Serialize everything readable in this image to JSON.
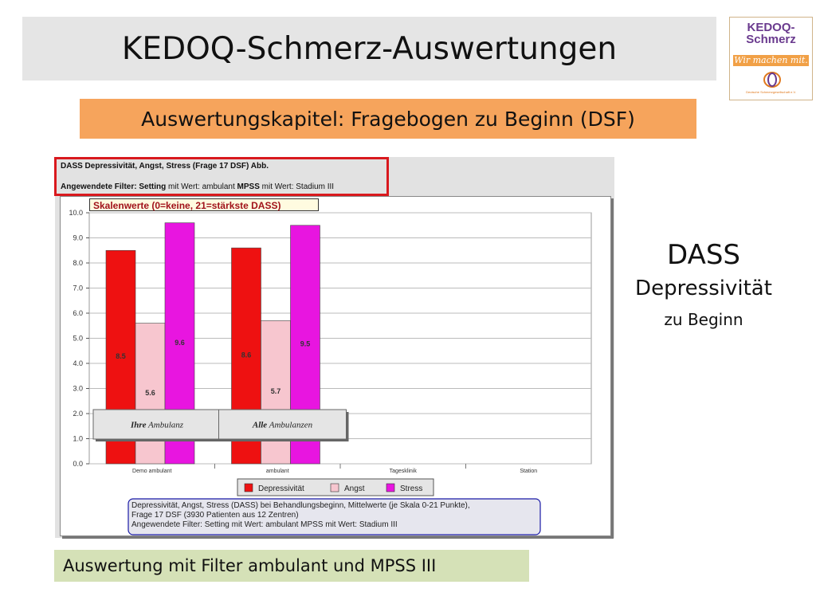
{
  "slide": {
    "title": "KEDOQ-Schmerz-Auswertungen",
    "chapter": "Auswertungskapitel: Fragebogen zu Beginn (DSF)",
    "side_title": "DASS",
    "side_subtitle": "Depressivität",
    "side_note": "zu Beginn",
    "bottom_note": "Auswertung mit  Filter ambulant und MPSS III"
  },
  "logo": {
    "line1": "KEDOQ-",
    "line2": "Schmerz",
    "tagline": "Wir machen mit.",
    "org": "Deutsche Schmerzgesellschaft e.V.",
    "color_brand": "#6a3a8e",
    "color_accent": "#f1a046"
  },
  "panel": {
    "header_title": "DASS Depressivität, Angst, Stress (Frage 17 DSF) Abb.",
    "header_filter": "Angewendete Filter: Setting mit Wert: ambulant MPSS mit Wert: Stadium III"
  },
  "chart_data": {
    "type": "bar",
    "title": "Skalenwerte (0=keine, 21=stärkste DASS)",
    "categories": [
      "Demo ambulant",
      "ambulant",
      "Tagesklinik",
      "Station"
    ],
    "series": [
      {
        "name": "Depressivität",
        "values": [
          8.5,
          8.6,
          null,
          null
        ],
        "color": "#ee1111"
      },
      {
        "name": "Angst",
        "values": [
          5.6,
          5.7,
          null,
          null
        ],
        "color": "#f7c6cf"
      },
      {
        "name": "Stress",
        "values": [
          9.6,
          9.5,
          null,
          null
        ],
        "color": "#e815e0"
      }
    ],
    "ylim": [
      0,
      10
    ],
    "yticks": [
      "0.0",
      "1.0",
      "2.0",
      "3.0",
      "4.0",
      "5.0",
      "6.0",
      "7.0",
      "8.0",
      "9.0",
      "10.0"
    ],
    "grid": true,
    "legend_position": "bottom",
    "annotations": [
      {
        "bold": "Ihre",
        "text": " Ambulanz",
        "category": "Demo ambulant"
      },
      {
        "bold": "Alle",
        "text": " Ambulanzen",
        "category": "ambulant"
      }
    ],
    "caption": [
      "Depressivität, Angst, Stress (DASS) bei Behandlungsbeginn, Mittelwerte (je Skala 0-21 Punkte),",
      "Frage 17 DSF (3930 Patienten aus 12 Zentren)",
      "Angewendete Filter:  Setting mit Wert: ambulant    MPSS mit Wert: Stadium III"
    ]
  }
}
